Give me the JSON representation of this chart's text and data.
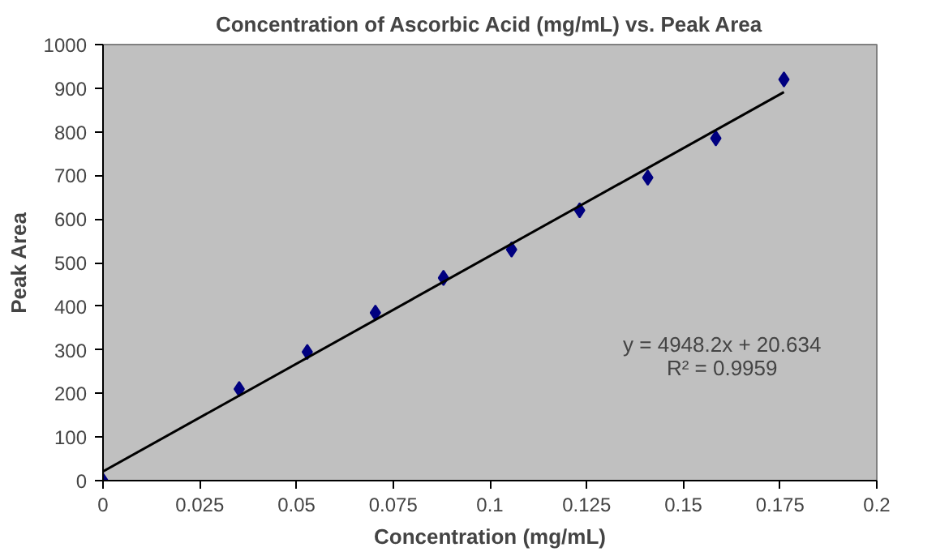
{
  "chart_data": {
    "type": "scatter",
    "title": "Concentration of Ascorbic Acid (mg/mL) vs. Peak Area",
    "xlabel": "Concentration (mg/mL)",
    "ylabel": "Peak Area",
    "xlim": [
      0,
      0.2
    ],
    "xticks": [
      0,
      0.025,
      0.05,
      0.075,
      0.1,
      0.125,
      0.15,
      0.175,
      0.2
    ],
    "ylim": [
      0,
      1000
    ],
    "yticks": [
      0,
      100,
      200,
      300,
      400,
      500,
      600,
      700,
      800,
      900,
      1000
    ],
    "grid": false,
    "series": [
      {
        "marker": "diamond",
        "color": "#000080",
        "x": [
          0,
          0.0352,
          0.0528,
          0.0704,
          0.088,
          0.1056,
          0.1232,
          0.1408,
          0.1584,
          0.176
        ],
        "values": [
          0,
          210,
          295,
          385,
          465,
          530,
          620,
          695,
          785,
          920
        ]
      },
      {
        "type": "line",
        "color": "#000000",
        "x": [
          0,
          0.176
        ],
        "values": [
          21,
          891
        ]
      }
    ],
    "annotations": [
      "y = 4948.2x + 20.634",
      "R² = 0.9959"
    ]
  }
}
